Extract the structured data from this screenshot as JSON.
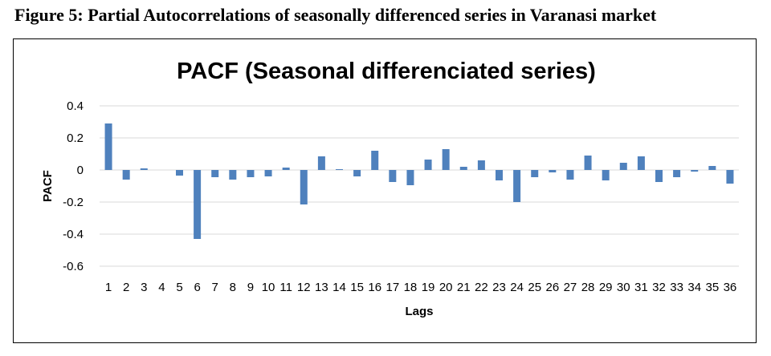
{
  "figure_caption": "Figure 5: Partial Autocorrelations of seasonally differenced series in Varanasi market",
  "chart_data": {
    "type": "bar",
    "title": "PACF (Seasonal differenciated series)",
    "xlabel": "Lags",
    "ylabel": "PACF",
    "ylim": [
      -0.6,
      0.4
    ],
    "y_ticks": [
      "0.4",
      "0.2",
      "0",
      "-0.2",
      "-0.4",
      "-0.6"
    ],
    "grid": true,
    "bar_color": "#4f81bd",
    "categories": [
      "1",
      "2",
      "3",
      "4",
      "5",
      "6",
      "7",
      "8",
      "9",
      "10",
      "11",
      "12",
      "13",
      "14",
      "15",
      "16",
      "17",
      "18",
      "19",
      "20",
      "21",
      "22",
      "23",
      "24",
      "25",
      "26",
      "27",
      "28",
      "29",
      "30",
      "31",
      "32",
      "33",
      "34",
      "35",
      "36"
    ],
    "values": [
      0.29,
      -0.06,
      0.01,
      0.0,
      -0.035,
      -0.43,
      -0.045,
      -0.06,
      -0.045,
      -0.04,
      0.015,
      -0.215,
      0.085,
      0.005,
      -0.04,
      0.12,
      -0.075,
      -0.095,
      0.065,
      0.13,
      0.02,
      0.06,
      -0.065,
      -0.2,
      -0.045,
      -0.015,
      -0.06,
      0.09,
      -0.065,
      0.045,
      0.085,
      -0.075,
      -0.045,
      -0.01,
      0.025,
      -0.085
    ]
  }
}
